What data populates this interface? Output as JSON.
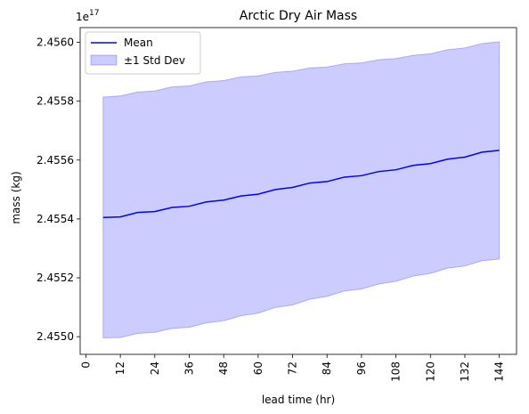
{
  "chart_data": {
    "type": "line",
    "title": "Arctic Dry Air Mass",
    "xlabel": "lead time (hr)",
    "ylabel": "mass (kg)",
    "y_offset_label": "1e17",
    "xlim": [
      -2,
      150
    ],
    "ylim": [
      2.45494,
      2.45605
    ],
    "x_ticks": [
      0,
      12,
      24,
      36,
      48,
      60,
      72,
      84,
      96,
      108,
      120,
      132,
      144
    ],
    "y_ticks": [
      2.455,
      2.4552,
      2.4554,
      2.4556,
      2.4558,
      2.456
    ],
    "y_tick_labels": [
      "2.4550",
      "2.4552",
      "2.4554",
      "2.4556",
      "2.4558",
      "2.4560"
    ],
    "grid": false,
    "legend_position": "top-left",
    "colors": {
      "mean": "#0000ff",
      "band_fill": "#0000ff",
      "band_fill_opacity": 0.2
    },
    "series": [
      {
        "name": "Mean",
        "x": [
          6,
          12,
          18,
          24,
          30,
          36,
          42,
          48,
          54,
          60,
          66,
          72,
          78,
          84,
          90,
          96,
          102,
          108,
          114,
          120,
          126,
          132,
          138,
          144
        ],
        "y": [
          2.455405,
          2.455407,
          2.455422,
          2.455425,
          2.455439,
          2.455443,
          2.455458,
          2.455464,
          2.455478,
          2.455484,
          2.4555,
          2.455507,
          2.455522,
          2.455527,
          2.455542,
          2.455547,
          2.455561,
          2.455567,
          2.455582,
          2.455588,
          2.455603,
          2.45561,
          2.455627,
          2.455633
        ]
      },
      {
        "name": "±1 Std Dev",
        "type": "band",
        "x": [
          6,
          12,
          18,
          24,
          30,
          36,
          42,
          48,
          54,
          60,
          66,
          72,
          78,
          84,
          90,
          96,
          102,
          108,
          114,
          120,
          126,
          132,
          138,
          144
        ],
        "upper": [
          2.455814,
          2.455818,
          2.455831,
          2.455835,
          2.455849,
          2.455852,
          2.455866,
          2.45587,
          2.455883,
          2.455886,
          2.455898,
          2.455902,
          2.455913,
          2.455916,
          2.455927,
          2.45593,
          2.455941,
          2.455945,
          2.455956,
          2.455961,
          2.455975,
          2.455981,
          2.455996,
          2.456002
        ],
        "lower": [
          2.454996,
          2.454997,
          2.455011,
          2.455015,
          2.455028,
          2.455032,
          2.455047,
          2.455054,
          2.455071,
          2.45508,
          2.455099,
          2.455108,
          2.455127,
          2.455137,
          2.455155,
          2.455162,
          2.455179,
          2.455188,
          2.455206,
          2.455215,
          2.455233,
          2.45524,
          2.455258,
          2.455264
        ]
      }
    ]
  }
}
